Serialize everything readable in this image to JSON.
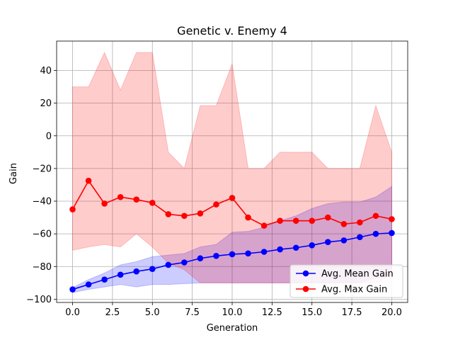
{
  "chart_data": {
    "type": "line",
    "title": "Genetic v. Enemy 4",
    "xlabel": "Generation",
    "ylabel": "Gain",
    "xlim": [
      -1,
      21
    ],
    "ylim": [
      -102,
      58
    ],
    "x_ticks": [
      0.0,
      2.5,
      5.0,
      7.5,
      10.0,
      12.5,
      15.0,
      17.5,
      20.0
    ],
    "x_tick_labels": [
      "0.0",
      "2.5",
      "5.0",
      "7.5",
      "10.0",
      "12.5",
      "15.0",
      "17.5",
      "20.0"
    ],
    "y_ticks": [
      -100,
      -80,
      -60,
      -40,
      -20,
      0,
      20,
      40
    ],
    "y_tick_labels": [
      "−100",
      "−80",
      "−60",
      "−40",
      "−20",
      "0",
      "20",
      "40"
    ],
    "grid": true,
    "legend_position": "lower-right",
    "x": [
      0,
      1,
      2,
      3,
      4,
      5,
      6,
      7,
      8,
      9,
      10,
      11,
      12,
      13,
      14,
      15,
      16,
      17,
      18,
      19,
      20
    ],
    "series": [
      {
        "name": "Avg. Mean Gain",
        "color": "#0000ff",
        "band_color": "#0000ff",
        "values": [
          -94,
          -91,
          -88,
          -85,
          -83,
          -81.5,
          -79,
          -77.5,
          -75,
          -73.5,
          -72.5,
          -72,
          -71,
          -69.5,
          -68.5,
          -67,
          -65,
          -64,
          -62,
          -60,
          -59.5
        ],
        "band_upper": [
          -93,
          -88,
          -84,
          -79,
          -77,
          -74,
          -73,
          -72,
          -68,
          -66.5,
          -59,
          -58.5,
          -56,
          -52,
          -49,
          -44.5,
          -41.5,
          -40.5,
          -40.5,
          -37.5,
          -31
        ],
        "band_lower": [
          -96,
          -94,
          -92.5,
          -91,
          -92.5,
          -91,
          -91,
          -90.5,
          -90,
          -90,
          -90,
          -90,
          -90,
          -90,
          -90,
          -90,
          -90,
          -90,
          -90,
          -87,
          -86
        ]
      },
      {
        "name": "Avg. Max Gain",
        "color": "#ff0000",
        "band_color": "#ff0000",
        "values": [
          -45,
          -27.5,
          -41.5,
          -37.5,
          -39,
          -41,
          -48,
          -49,
          -47.5,
          -42,
          -38,
          -50,
          -55,
          -52,
          -52,
          -52,
          -50,
          -54,
          -53,
          -49,
          -51
        ],
        "band_upper": [
          30,
          30,
          51,
          28,
          51,
          51,
          -10,
          -20,
          18.5,
          18.5,
          44,
          -20,
          -20,
          -10,
          -10,
          -10,
          -20,
          -20,
          -20,
          18.5,
          -10
        ],
        "band_lower": [
          -70,
          -68,
          -66.5,
          -68,
          -60,
          -68,
          -78,
          -82,
          -90,
          -90,
          -90,
          -90,
          -90,
          -90,
          -90,
          -90,
          -90,
          -90,
          -90,
          -90,
          -85
        ]
      }
    ]
  }
}
